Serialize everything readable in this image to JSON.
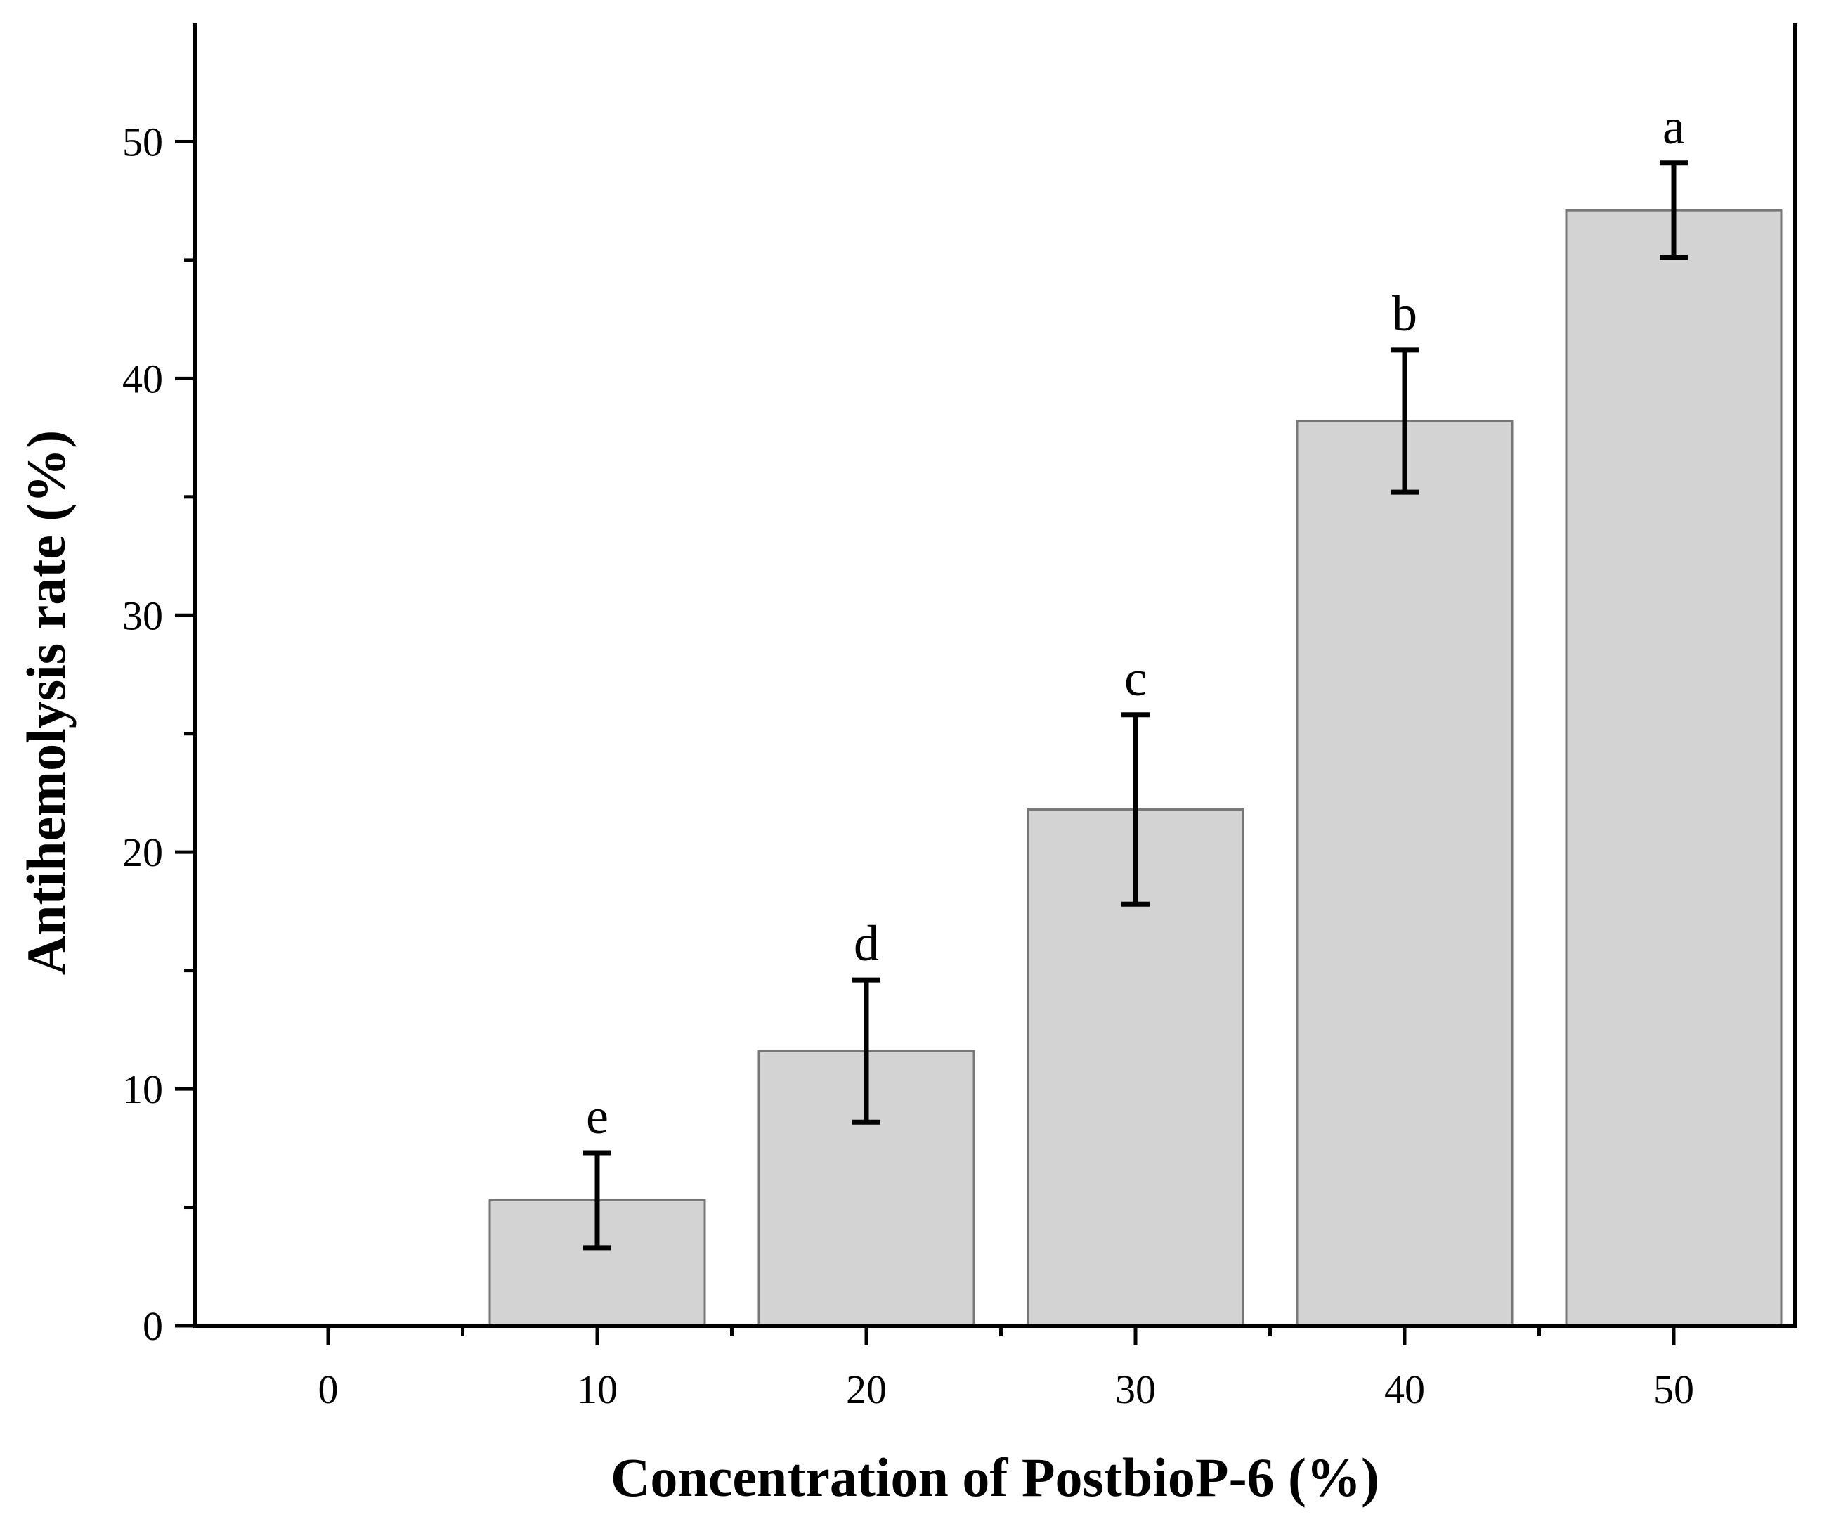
{
  "chart_data": {
    "type": "bar",
    "xlabel": "Concentration of PostbioP-6 (%)",
    "ylabel": "Antihemolysis rate (%)",
    "ylim": [
      0,
      55
    ],
    "yticks": [
      0,
      10,
      20,
      30,
      40,
      50
    ],
    "categories": [
      "0",
      "10",
      "20",
      "30",
      "40",
      "50"
    ],
    "values": [
      0,
      5.3,
      11.6,
      21.8,
      38.2,
      47.1
    ],
    "errors": [
      0,
      2.0,
      3.0,
      4.0,
      3.0,
      2.0
    ],
    "significance": [
      "",
      "e",
      "d",
      "c",
      "b",
      "a"
    ],
    "grid": false,
    "colors": {
      "bar_fill": "#d3d3d3",
      "bar_edge": "#777777",
      "axis": "#000000"
    }
  }
}
